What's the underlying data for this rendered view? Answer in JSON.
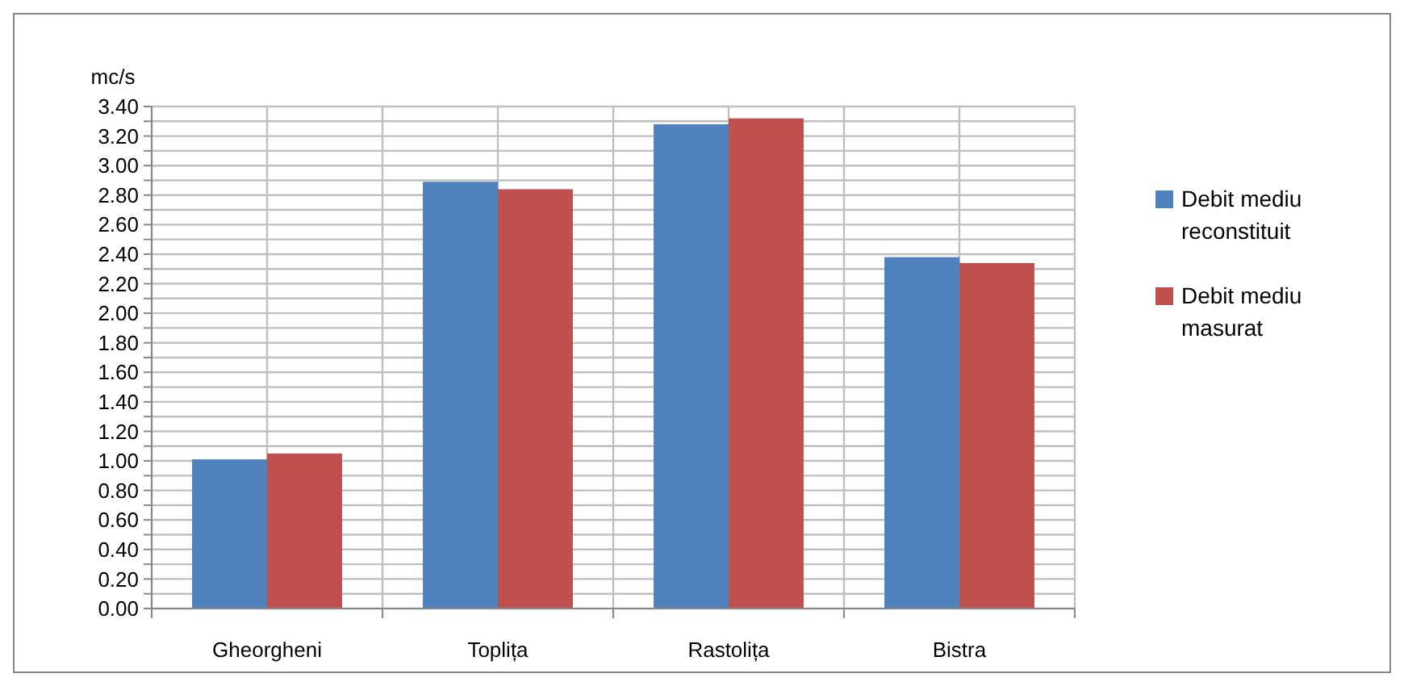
{
  "chart_data": {
    "type": "bar",
    "ylabel": "mc/s",
    "categories": [
      "Gheorgheni",
      "Toplița",
      "Rastolița",
      "Bistra"
    ],
    "series": [
      {
        "name": "Debit mediu reconstituit",
        "color": "#4f81bd",
        "values": [
          1.01,
          2.89,
          3.28,
          2.38
        ]
      },
      {
        "name": "Debit mediu masurat",
        "color": "#c0504d",
        "values": [
          1.05,
          2.84,
          3.32,
          2.34
        ]
      }
    ],
    "ylim": [
      0,
      3.4
    ],
    "yticks": [
      {
        "value": 0,
        "label": "0.00"
      },
      {
        "value": 0.1,
        "label": null
      },
      {
        "value": 0.2,
        "label": "0.20"
      },
      {
        "value": 0.3,
        "label": null
      },
      {
        "value": 0.4,
        "label": "0.40"
      },
      {
        "value": 0.5,
        "label": null
      },
      {
        "value": 0.6,
        "label": "0.60"
      },
      {
        "value": 0.7,
        "label": null
      },
      {
        "value": 0.8,
        "label": "0.80"
      },
      {
        "value": 0.9,
        "label": null
      },
      {
        "value": 1,
        "label": "1.00"
      },
      {
        "value": 1.1,
        "label": null
      },
      {
        "value": 1.2,
        "label": "1.20"
      },
      {
        "value": 1.3,
        "label": null
      },
      {
        "value": 1.4,
        "label": "1.40"
      },
      {
        "value": 1.5,
        "label": null
      },
      {
        "value": 1.6,
        "label": "1.60"
      },
      {
        "value": 1.7,
        "label": null
      },
      {
        "value": 1.8,
        "label": "1.80"
      },
      {
        "value": 1.9,
        "label": null
      },
      {
        "value": 2,
        "label": "2.00"
      },
      {
        "value": 2.1,
        "label": null
      },
      {
        "value": 2.2,
        "label": "2.20"
      },
      {
        "value": 2.3,
        "label": null
      },
      {
        "value": 2.4,
        "label": "2.40"
      },
      {
        "value": 2.5,
        "label": null
      },
      {
        "value": 2.6,
        "label": "2.60"
      },
      {
        "value": 2.7,
        "label": null
      },
      {
        "value": 2.8,
        "label": "2.80"
      },
      {
        "value": 2.9,
        "label": null
      },
      {
        "value": 3,
        "label": "3.00"
      },
      {
        "value": 3.1,
        "label": null
      },
      {
        "value": 3.2,
        "label": "3.20"
      },
      {
        "value": 3.3,
        "label": null
      },
      {
        "value": 3.4,
        "label": "3.40"
      }
    ],
    "grid": true,
    "legend": "right"
  }
}
